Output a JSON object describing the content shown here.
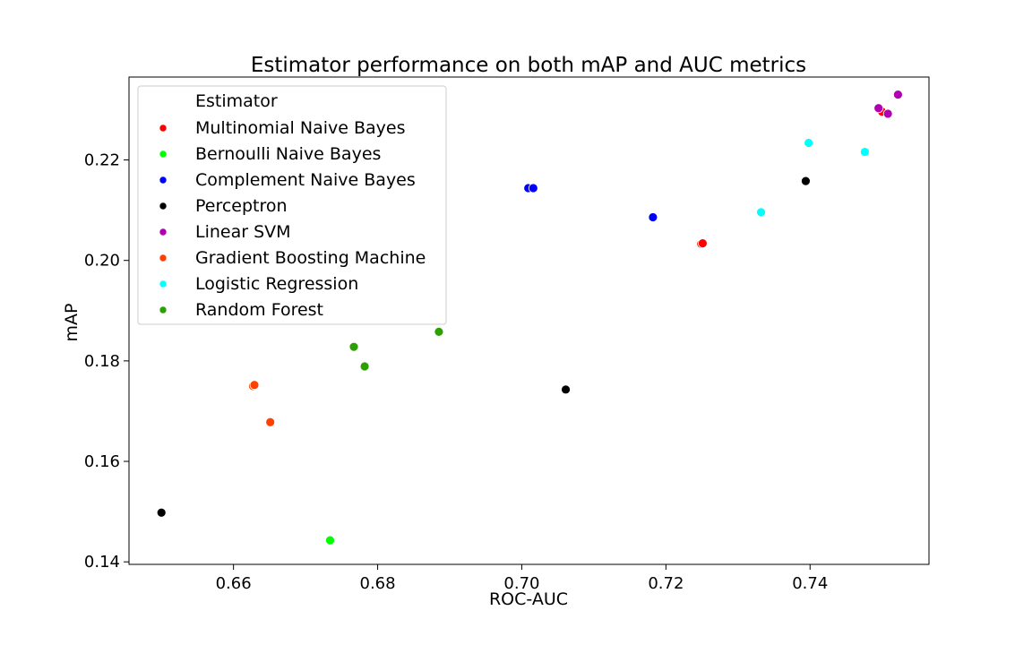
{
  "chart_data": {
    "type": "scatter",
    "title": "Estimator performance on both mAP and AUC metrics",
    "xlabel": "ROC-AUC",
    "ylabel": "mAP",
    "xlim": [
      0.6455,
      0.7565
    ],
    "ylim": [
      0.1395,
      0.2365
    ],
    "xticks": [
      "0.66",
      "0.68",
      "0.70",
      "0.72",
      "0.74"
    ],
    "yticks": [
      "0.14",
      "0.16",
      "0.18",
      "0.20",
      "0.22"
    ],
    "grid": false,
    "legend_position": "upper-left",
    "legend_title": "Estimator",
    "series": [
      {
        "name": "Multinomial Naive Bayes",
        "color": "#ff0000",
        "points": [
          [
            0.7249,
            0.2033
          ],
          [
            0.7251,
            0.2034
          ],
          [
            0.75,
            0.2296
          ]
        ]
      },
      {
        "name": "Bernoulli Naive Bayes",
        "color": "#00ff00",
        "points": [
          [
            0.6734,
            0.1443
          ]
        ]
      },
      {
        "name": "Complement Naive Bayes",
        "color": "#0000ff",
        "points": [
          [
            0.7009,
            0.2144
          ],
          [
            0.7016,
            0.2144
          ],
          [
            0.7182,
            0.2086
          ]
        ]
      },
      {
        "name": "Perceptron",
        "color": "#000000",
        "points": [
          [
            0.65,
            0.1498
          ],
          [
            0.7061,
            0.1743
          ],
          [
            0.7394,
            0.2158
          ]
        ]
      },
      {
        "name": "Linear SVM",
        "color": "#b000b0",
        "points": [
          [
            0.7495,
            0.2303
          ],
          [
            0.7508,
            0.2292
          ],
          [
            0.7522,
            0.233
          ]
        ]
      },
      {
        "name": "Gradient Boosting Machine",
        "color": "#ff4000",
        "points": [
          [
            0.6627,
            0.175
          ],
          [
            0.6629,
            0.1752
          ],
          [
            0.6651,
            0.1678
          ]
        ]
      },
      {
        "name": "Logistic Regression",
        "color": "#00ffff",
        "points": [
          [
            0.7398,
            0.2234
          ],
          [
            0.7332,
            0.2096
          ],
          [
            0.7476,
            0.2216
          ]
        ]
      },
      {
        "name": "Random Forest",
        "color": "#2ca000",
        "points": [
          [
            0.6767,
            0.1828
          ],
          [
            0.6782,
            0.1789
          ],
          [
            0.6885,
            0.1858
          ]
        ]
      }
    ]
  }
}
